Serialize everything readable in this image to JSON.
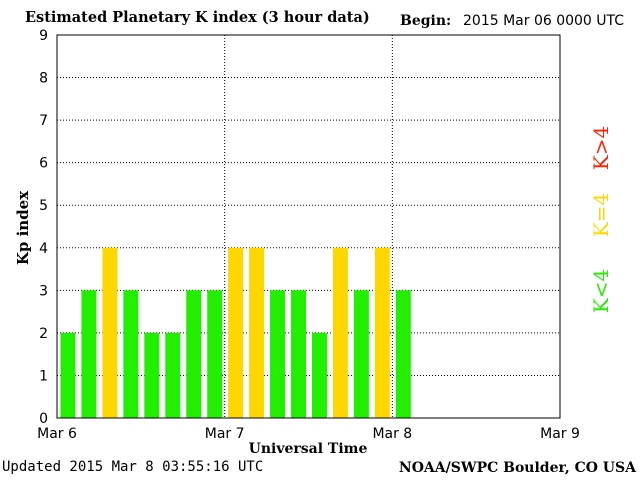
{
  "header": {
    "title": "Estimated Planetary K index (3 hour data)",
    "begin_label": "Begin:",
    "begin_value": "2015 Mar 06 0000 UTC"
  },
  "footer": {
    "updated": "Updated 2015 Mar  8 03:55:16 UTC",
    "credit": "NOAA/SWPC Boulder, CO USA"
  },
  "legend": {
    "below": "K<4",
    "equal": "K=4",
    "above": "K>4"
  },
  "colors": {
    "below": "#22ee00",
    "equal": "#ffd700",
    "above": "#ff2200"
  },
  "chart_data": {
    "type": "bar",
    "title": "Estimated Planetary K index (3 hour data)",
    "xlabel": "Universal Time",
    "ylabel": "Kp index",
    "ylim": [
      0,
      9
    ],
    "yticks": [
      0,
      1,
      2,
      3,
      4,
      5,
      6,
      7,
      8,
      9
    ],
    "xticks": [
      "Mar 6",
      "Mar 7",
      "Mar 8",
      "Mar 9"
    ],
    "interval_hours": 3,
    "slots_total": 24,
    "values": [
      2,
      3,
      4,
      3,
      2,
      2,
      3,
      3,
      4,
      4,
      3,
      3,
      2,
      4,
      3,
      4,
      3
    ],
    "grid": true
  }
}
